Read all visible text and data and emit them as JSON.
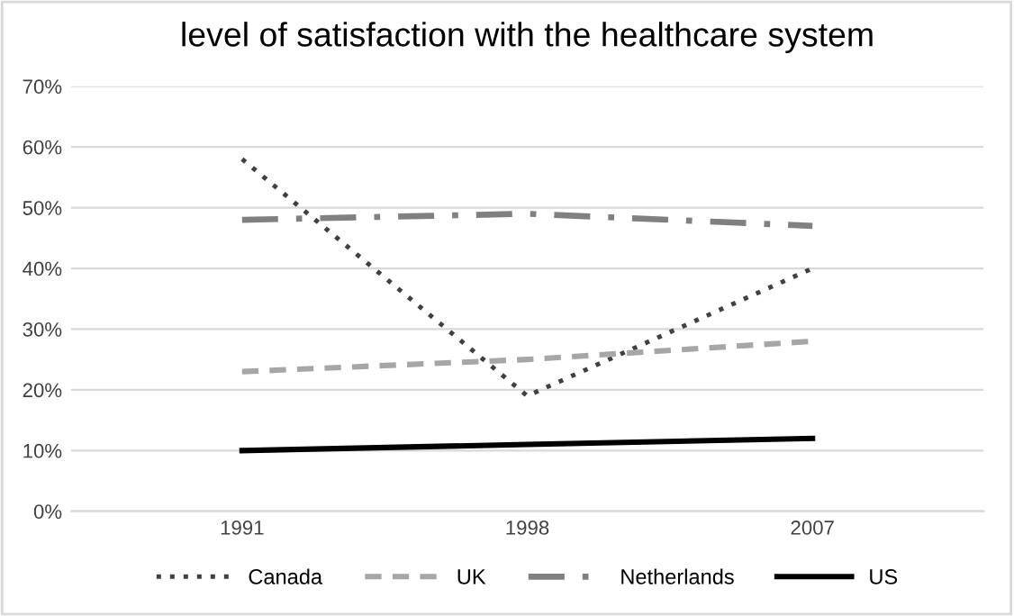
{
  "chart_data": {
    "type": "line",
    "title": "level of satisfaction with the healthcare system",
    "categories": [
      "1991",
      "1998",
      "2007"
    ],
    "series": [
      {
        "name": "Canada",
        "color": "#404040",
        "line_style": "dotted",
        "values": [
          58,
          19,
          40
        ]
      },
      {
        "name": "UK",
        "color": "#a6a6a6",
        "line_style": "dashed",
        "values": [
          23,
          25,
          28
        ]
      },
      {
        "name": "Netherlands",
        "color": "#808080",
        "line_style": "dashdot",
        "values": [
          48,
          49,
          47
        ]
      },
      {
        "name": "US",
        "color": "#000000",
        "line_style": "solid",
        "values": [
          10,
          11,
          12
        ]
      }
    ],
    "ylim": [
      0,
      70
    ],
    "yticks": [
      {
        "value": 0,
        "label": "0%"
      },
      {
        "value": 10,
        "label": "10%"
      },
      {
        "value": 20,
        "label": "20%"
      },
      {
        "value": 30,
        "label": "30%"
      },
      {
        "value": 40,
        "label": "40%"
      },
      {
        "value": 50,
        "label": "50%"
      },
      {
        "value": 60,
        "label": "60%"
      },
      {
        "value": 70,
        "label": "70%"
      }
    ],
    "grid": "y",
    "legend": "bottom",
    "marker": "none"
  }
}
